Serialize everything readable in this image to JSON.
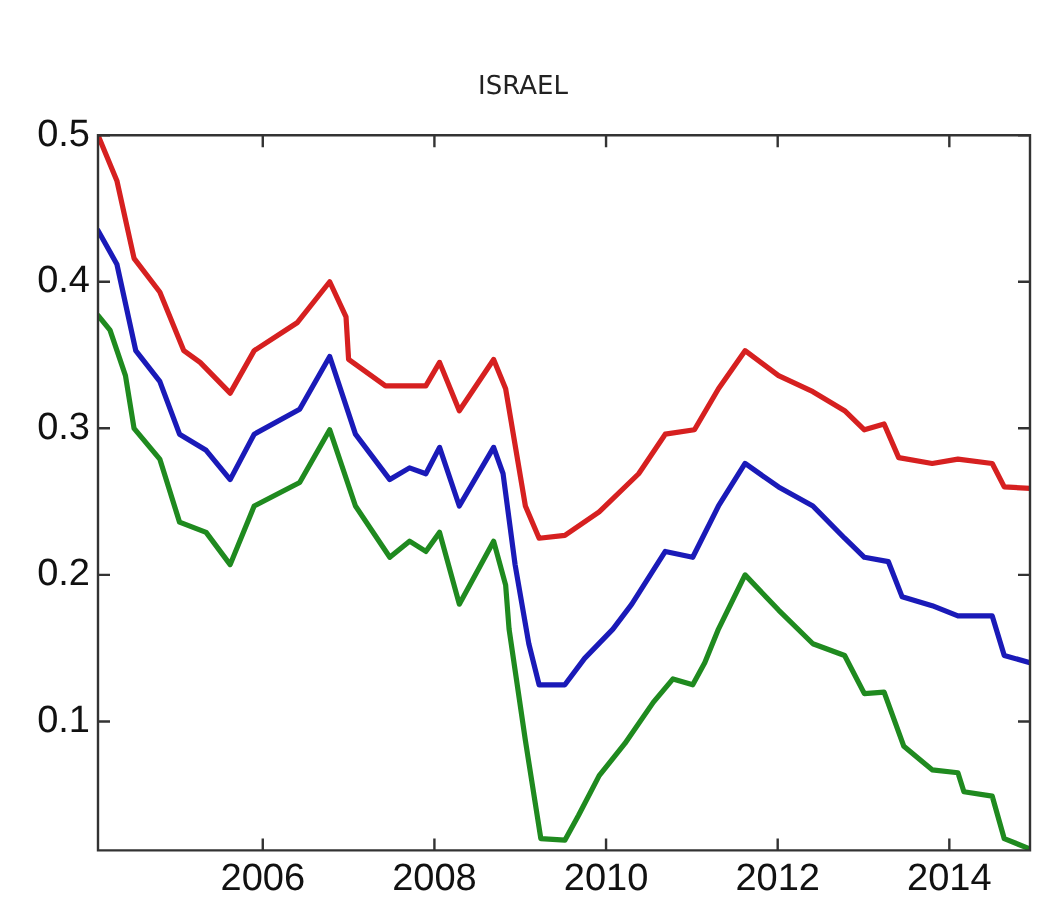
{
  "chart_data": {
    "type": "line",
    "title": "ISRAEL",
    "xlim": [
      2004.08,
      2014.94
    ],
    "xticks": [
      2006,
      2008,
      2010,
      2012,
      2014
    ],
    "ylim": [
      0.012,
      0.5
    ],
    "yticks": [
      0.1,
      0.2,
      0.3,
      0.4,
      0.5
    ],
    "grid": false,
    "legend": false,
    "marker": "none",
    "line_style": "solid",
    "series": [
      {
        "color": "#d62020",
        "x": [
          2004.08,
          2004.3,
          2004.5,
          2004.8,
          2005.08,
          2005.27,
          2005.62,
          2005.9,
          2006.4,
          2006.78,
          2006.97,
          2007.0,
          2007.43,
          2007.9,
          2008.06,
          2008.29,
          2008.69,
          2008.83,
          2009.06,
          2009.22,
          2009.52,
          2009.92,
          2010.38,
          2010.69,
          2011.03,
          2011.31,
          2011.62,
          2012.01,
          2012.41,
          2012.78,
          2013.01,
          2013.24,
          2013.41,
          2013.8,
          2014.1,
          2014.5,
          2014.64,
          2014.94
        ],
        "values": [
          0.5,
          0.469,
          0.416,
          0.393,
          0.353,
          0.345,
          0.324,
          0.353,
          0.372,
          0.4,
          0.376,
          0.347,
          0.329,
          0.329,
          0.345,
          0.312,
          0.347,
          0.327,
          0.247,
          0.225,
          0.227,
          0.243,
          0.269,
          0.296,
          0.299,
          0.327,
          0.353,
          0.336,
          0.325,
          0.312,
          0.299,
          0.303,
          0.28,
          0.276,
          0.279,
          0.276,
          0.26,
          0.259
        ]
      },
      {
        "color": "#1a1ab8",
        "x": [
          2004.08,
          2004.3,
          2004.52,
          2004.8,
          2005.03,
          2005.34,
          2005.62,
          2005.9,
          2006.43,
          2006.78,
          2007.08,
          2007.48,
          2007.71,
          2007.9,
          2008.06,
          2008.29,
          2008.69,
          2008.8,
          2008.94,
          2009.1,
          2009.22,
          2009.52,
          2009.75,
          2010.08,
          2010.3,
          2010.69,
          2011.01,
          2011.31,
          2011.62,
          2012.01,
          2012.41,
          2012.78,
          2013.01,
          2013.29,
          2013.45,
          2013.8,
          2014.1,
          2014.5,
          2014.64,
          2014.94
        ],
        "values": [
          0.435,
          0.412,
          0.353,
          0.332,
          0.296,
          0.285,
          0.265,
          0.296,
          0.313,
          0.349,
          0.296,
          0.265,
          0.273,
          0.269,
          0.287,
          0.247,
          0.287,
          0.269,
          0.207,
          0.153,
          0.125,
          0.125,
          0.143,
          0.163,
          0.18,
          0.216,
          0.212,
          0.247,
          0.276,
          0.26,
          0.247,
          0.225,
          0.212,
          0.209,
          0.185,
          0.179,
          0.172,
          0.172,
          0.145,
          0.14
        ]
      },
      {
        "color": "#1f8a1f",
        "x": [
          2004.08,
          2004.22,
          2004.4,
          2004.5,
          2004.8,
          2005.03,
          2005.34,
          2005.62,
          2005.9,
          2006.43,
          2006.78,
          2007.08,
          2007.48,
          2007.71,
          2007.9,
          2008.06,
          2008.29,
          2008.69,
          2008.83,
          2008.87,
          2009.06,
          2009.24,
          2009.52,
          2009.68,
          2009.92,
          2010.22,
          2010.55,
          2010.78,
          2011.01,
          2011.15,
          2011.31,
          2011.62,
          2012.01,
          2012.41,
          2012.78,
          2013.01,
          2013.24,
          2013.47,
          2013.8,
          2014.1,
          2014.17,
          2014.5,
          2014.64,
          2014.94
        ],
        "values": [
          0.377,
          0.367,
          0.336,
          0.3,
          0.279,
          0.236,
          0.229,
          0.207,
          0.247,
          0.263,
          0.299,
          0.247,
          0.212,
          0.223,
          0.216,
          0.229,
          0.18,
          0.223,
          0.193,
          0.163,
          0.087,
          0.02,
          0.019,
          0.036,
          0.063,
          0.085,
          0.113,
          0.129,
          0.125,
          0.14,
          0.163,
          0.2,
          0.176,
          0.153,
          0.145,
          0.119,
          0.12,
          0.083,
          0.067,
          0.065,
          0.052,
          0.049,
          0.02,
          0.013
        ]
      }
    ]
  }
}
